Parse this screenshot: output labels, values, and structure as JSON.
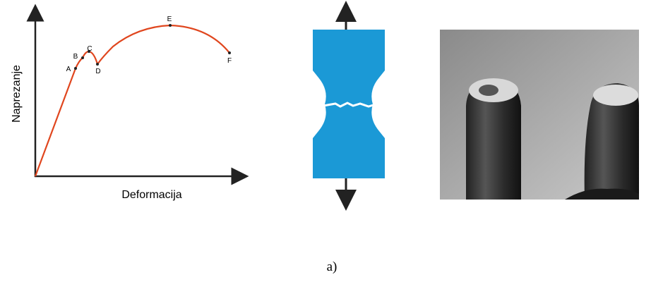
{
  "diagram": {
    "y_axis_label": "Naprezanje",
    "x_axis_label": "Deformacija",
    "points": [
      {
        "label": "A"
      },
      {
        "label": "B"
      },
      {
        "label": "C"
      },
      {
        "label": "D"
      },
      {
        "label": "E"
      },
      {
        "label": "F"
      }
    ],
    "caption": "a)"
  }
}
